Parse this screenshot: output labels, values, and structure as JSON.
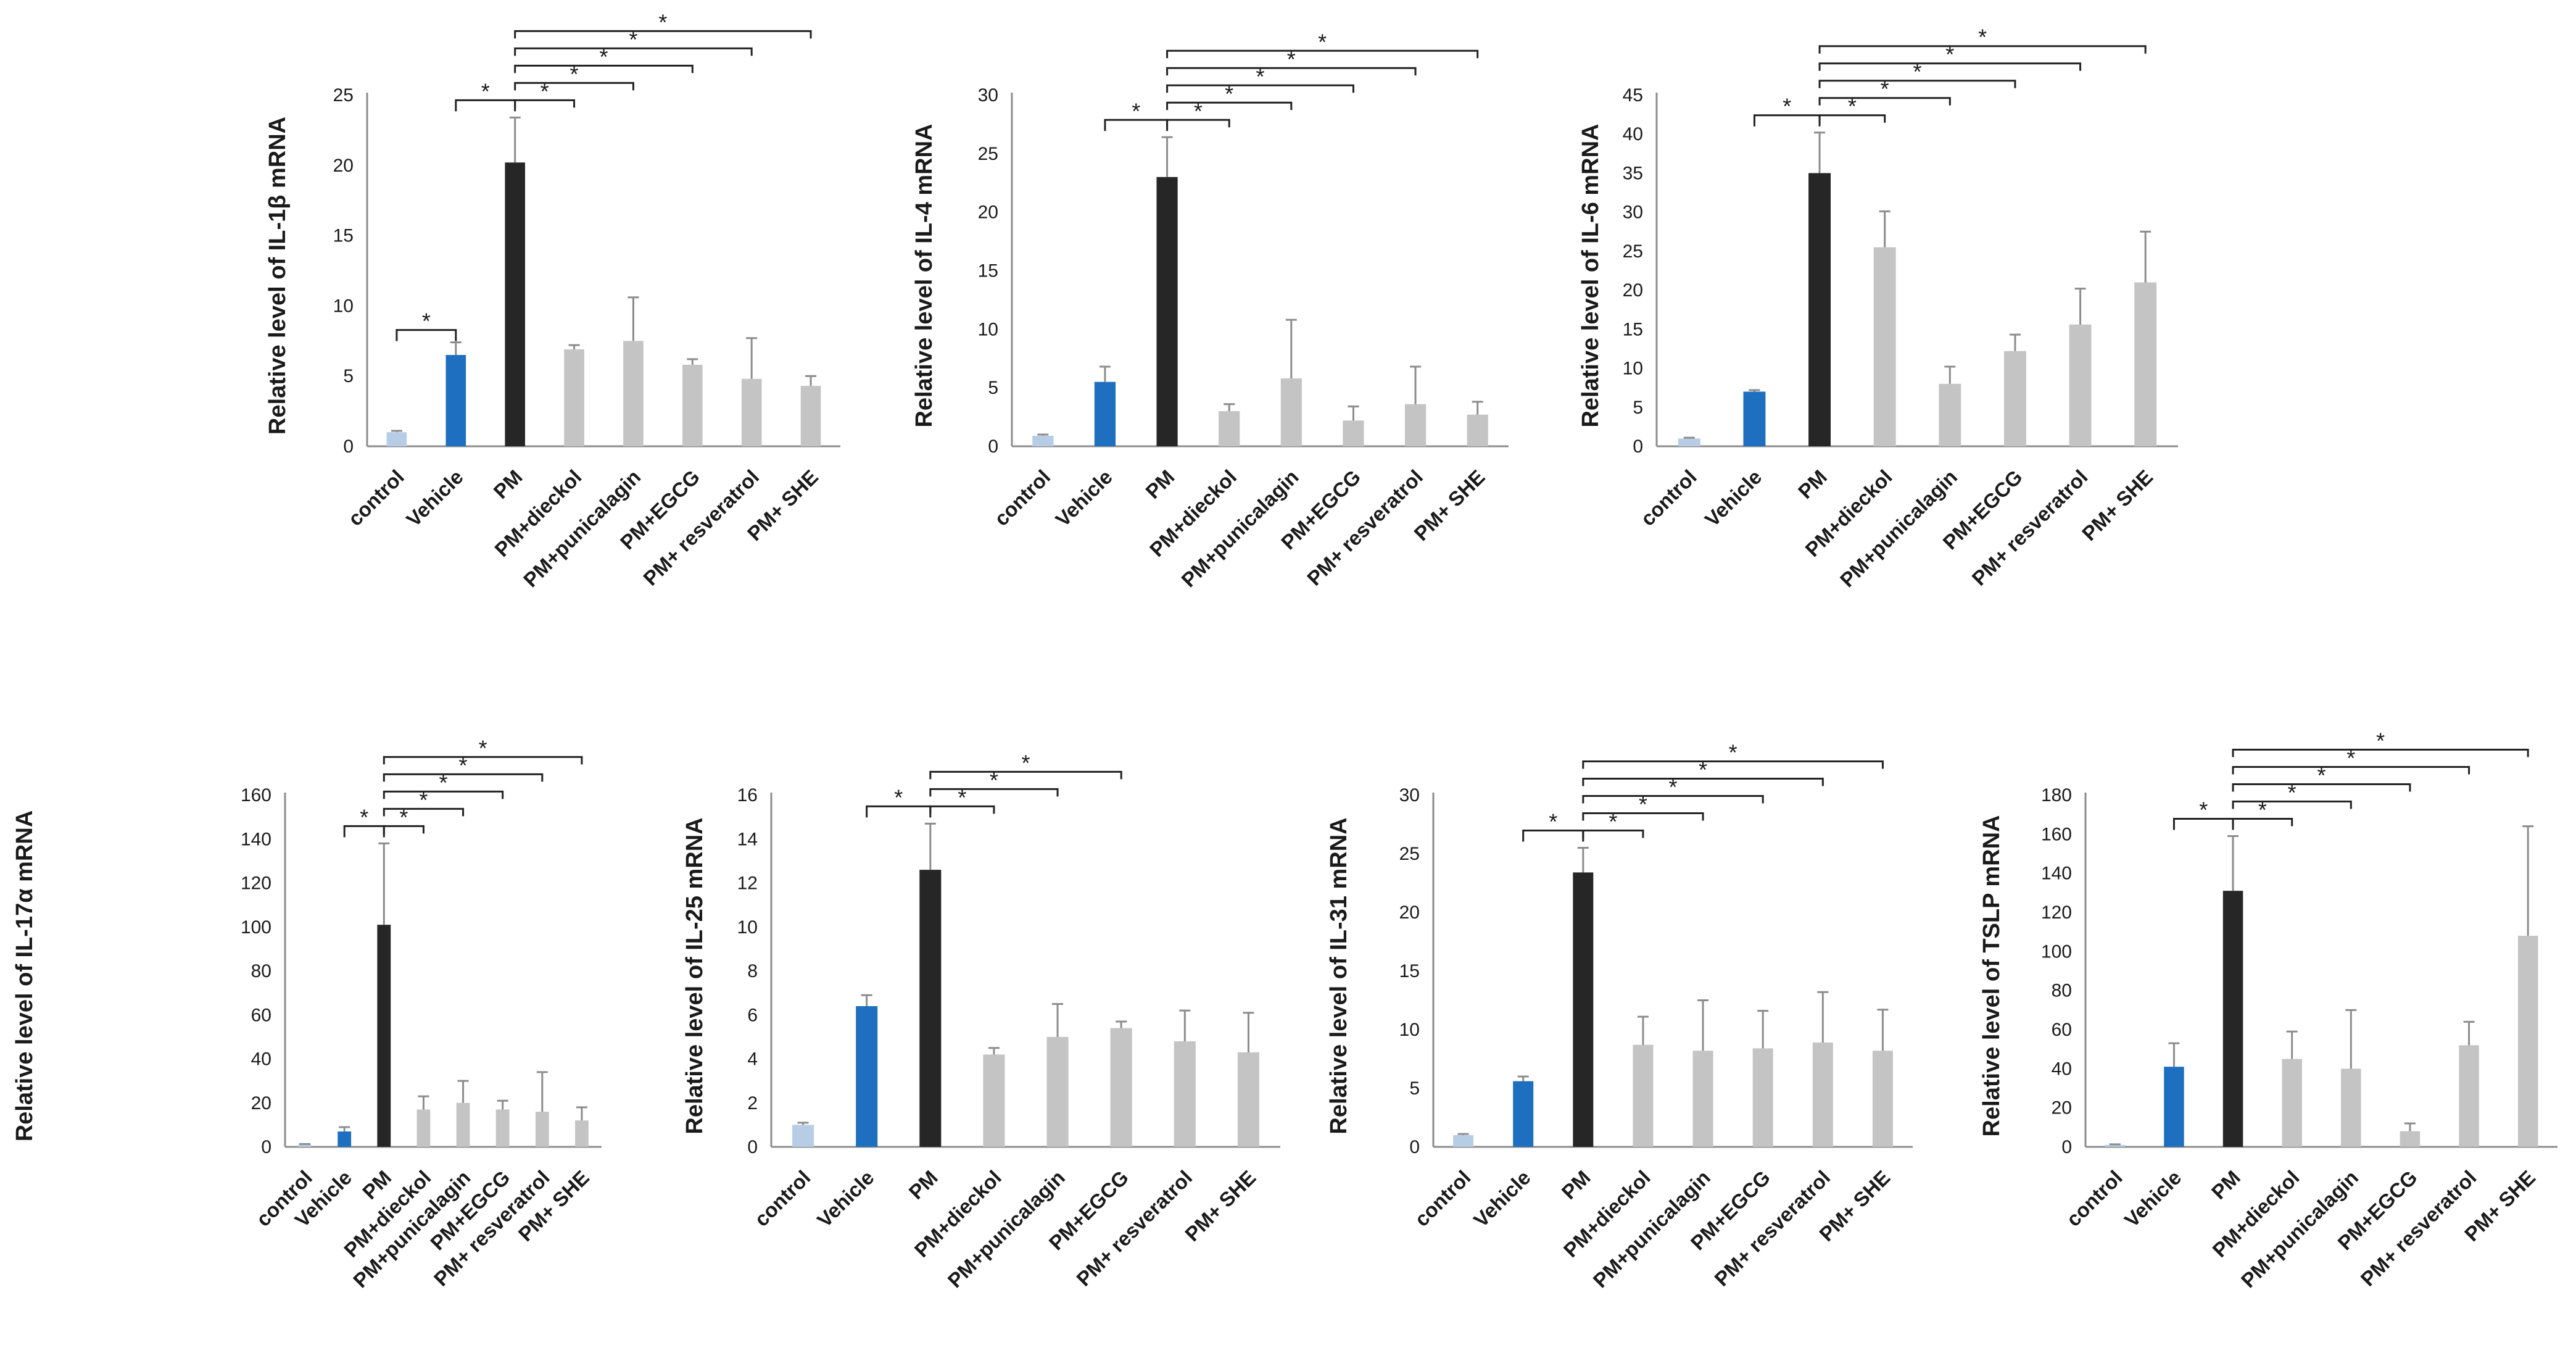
{
  "colors": {
    "control": "#b7cde6",
    "vehicle": "#1f6fc0",
    "pm": "#262626",
    "treatment": "#c4c4c4"
  },
  "categories": [
    "control",
    "Vehicle",
    "PM",
    "PM+dieckol",
    "PM+punicalagin",
    "PM+EGCG",
    "PM+ resveratrol",
    "PM+ SHE"
  ],
  "chart_data": [
    {
      "type": "bar",
      "ylabel": "Relative level of IL-1β  mRNA",
      "ylim": [
        0,
        25
      ],
      "yticks": [
        0,
        5,
        10,
        15,
        20,
        25
      ],
      "values": [
        1.0,
        6.5,
        20.2,
        6.9,
        7.5,
        5.8,
        4.8,
        4.3
      ],
      "errors": [
        0.1,
        0.9,
        3.2,
        0.3,
        3.1,
        0.4,
        2.9,
        0.7
      ],
      "significance": [
        {
          "from": 0,
          "to": 1,
          "label": "*"
        },
        {
          "from": 1,
          "to": 2,
          "label": "*"
        },
        {
          "from": 2,
          "to": 3,
          "label": "*"
        },
        {
          "from": 2,
          "to": 4,
          "label": "*"
        },
        {
          "from": 2,
          "to": 5,
          "label": "*"
        },
        {
          "from": 2,
          "to": 6,
          "label": "*"
        },
        {
          "from": 2,
          "to": 7,
          "label": "*"
        }
      ]
    },
    {
      "type": "bar",
      "ylabel": "Relative level of IL-4 mRNA",
      "ylim": [
        0,
        30
      ],
      "yticks": [
        0,
        5,
        10,
        15,
        20,
        25,
        30
      ],
      "values": [
        0.9,
        5.5,
        23.0,
        3.0,
        5.8,
        2.2,
        3.6,
        2.7
      ],
      "errors": [
        0.1,
        1.3,
        3.4,
        0.6,
        5.0,
        1.2,
        3.2,
        1.1
      ],
      "significance": [
        {
          "from": 1,
          "to": 2,
          "label": "*"
        },
        {
          "from": 2,
          "to": 3,
          "label": "*"
        },
        {
          "from": 2,
          "to": 4,
          "label": "*"
        },
        {
          "from": 2,
          "to": 5,
          "label": "*"
        },
        {
          "from": 2,
          "to": 6,
          "label": "*"
        },
        {
          "from": 2,
          "to": 7,
          "label": "*"
        }
      ]
    },
    {
      "type": "bar",
      "ylabel": "Relative level of IL-6 mRNA",
      "ylim": [
        0,
        45
      ],
      "yticks": [
        0,
        5,
        10,
        15,
        20,
        25,
        30,
        35,
        40,
        45
      ],
      "values": [
        1.0,
        7.0,
        35.0,
        25.5,
        8.0,
        12.2,
        15.6,
        21.0
      ],
      "errors": [
        0.1,
        0.2,
        5.2,
        4.6,
        2.2,
        2.1,
        4.6,
        6.5
      ],
      "significance": [
        {
          "from": 1,
          "to": 2,
          "label": "*"
        },
        {
          "from": 2,
          "to": 3,
          "label": "*"
        },
        {
          "from": 2,
          "to": 4,
          "label": "*"
        },
        {
          "from": 2,
          "to": 5,
          "label": "*"
        },
        {
          "from": 2,
          "to": 6,
          "label": "*"
        },
        {
          "from": 2,
          "to": 7,
          "label": "*"
        }
      ]
    },
    {
      "type": "bar",
      "ylabel": "Relative level of IL-17α mRNA",
      "ylim": [
        0,
        160
      ],
      "yticks": [
        0,
        20,
        40,
        60,
        80,
        100,
        120,
        140,
        160
      ],
      "values": [
        1,
        7,
        101,
        17,
        20,
        17,
        16,
        12
      ],
      "errors": [
        0.3,
        2,
        37,
        6,
        10,
        4,
        18,
        6
      ],
      "significance": [
        {
          "from": 1,
          "to": 2,
          "label": "*"
        },
        {
          "from": 2,
          "to": 3,
          "label": "*"
        },
        {
          "from": 2,
          "to": 4,
          "label": "*"
        },
        {
          "from": 2,
          "to": 5,
          "label": "*"
        },
        {
          "from": 2,
          "to": 6,
          "label": "*"
        },
        {
          "from": 2,
          "to": 7,
          "label": "*"
        }
      ]
    },
    {
      "type": "bar",
      "ylabel": "Relative level of IL-25 mRNA",
      "ylim": [
        0,
        16
      ],
      "yticks": [
        0,
        2,
        4,
        6,
        8,
        10,
        12,
        14,
        16
      ],
      "values": [
        1.0,
        6.4,
        12.6,
        4.2,
        5.0,
        5.4,
        4.8,
        4.3
      ],
      "errors": [
        0.1,
        0.5,
        2.1,
        0.3,
        1.5,
        0.3,
        1.4,
        1.8
      ],
      "significance": [
        {
          "from": 1,
          "to": 2,
          "label": "*"
        },
        {
          "from": 2,
          "to": 3,
          "label": "*"
        },
        {
          "from": 2,
          "to": 4,
          "label": "*"
        },
        {
          "from": 2,
          "to": 5,
          "label": "*"
        }
      ]
    },
    {
      "type": "bar",
      "ylabel": "Relative level of IL-31 mRNA",
      "ylim": [
        0,
        30
      ],
      "yticks": [
        0,
        5,
        10,
        15,
        20,
        25,
        30
      ],
      "values": [
        1.0,
        5.6,
        23.4,
        8.7,
        8.2,
        8.4,
        8.9,
        8.2
      ],
      "errors": [
        0.1,
        0.4,
        2.1,
        2.4,
        4.3,
        3.2,
        4.3,
        3.5
      ],
      "significance": [
        {
          "from": 1,
          "to": 2,
          "label": "*"
        },
        {
          "from": 2,
          "to": 3,
          "label": "*"
        },
        {
          "from": 2,
          "to": 4,
          "label": "*"
        },
        {
          "from": 2,
          "to": 5,
          "label": "*"
        },
        {
          "from": 2,
          "to": 6,
          "label": "*"
        },
        {
          "from": 2,
          "to": 7,
          "label": "*"
        }
      ]
    },
    {
      "type": "bar",
      "ylabel": "Relative level of TSLP mRNA",
      "ylim": [
        0,
        180
      ],
      "yticks": [
        0,
        20,
        40,
        60,
        80,
        100,
        120,
        140,
        160,
        180
      ],
      "values": [
        1,
        41,
        131,
        45,
        40,
        8,
        52,
        108
      ],
      "errors": [
        0.3,
        12,
        28,
        14,
        30,
        4,
        12,
        56
      ],
      "significance": [
        {
          "from": 1,
          "to": 2,
          "label": "*"
        },
        {
          "from": 2,
          "to": 3,
          "label": "*"
        },
        {
          "from": 2,
          "to": 4,
          "label": "*"
        },
        {
          "from": 2,
          "to": 5,
          "label": "*"
        },
        {
          "from": 2,
          "to": 6,
          "label": "*"
        },
        {
          "from": 2,
          "to": 7,
          "label": "*"
        }
      ]
    }
  ]
}
